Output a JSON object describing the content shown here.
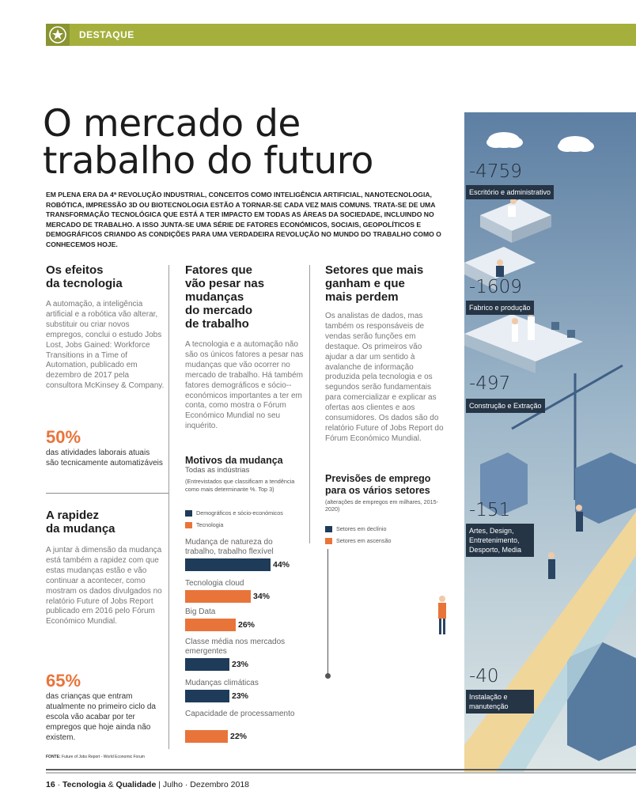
{
  "header": {
    "label": "DESTAQUE"
  },
  "title": {
    "line1": "O mercado de",
    "line2": "trabalho do futuro"
  },
  "lead": "Em plena era da 4ª revolução industrial, conceitos como inteligência artificial, nanotecnologia, robótica, impressão 3D ou biotecnologia estão a tornar-se cada vez mais comuns. Trata-se de uma transformação tecnológica que está a ter impacto em todas as áreas da sociedade, incluindo no mercado de trabalho. A isso junta-se uma série de fatores económicos, sociais, geopolíticos e demográficos criando as condições para uma verdadeira revolução no mundo do trabalho como o conhecemos hoje.",
  "col1": {
    "h1_line1": "Os efeitos",
    "h1_line2": "da tecnologia",
    "p1": "A automação, a inteligência artificial e a robótica vão alterar, substituir ou criar novos empregos, conclui o estudo Jobs Lost, Jobs Gained: Workforce Transitions in a Time of Automation, publicado em dezembro de 2017 pela consultora McKinsey & Company.",
    "stat1": "50%",
    "stat1_text": "das atividades laborais atuais são tecnicamente automatizáveis",
    "h2_line1": "A rapidez",
    "h2_line2": "da mudança",
    "p2": "A juntar à dimensão da mudança está também a rapidez com que estas mudanças estão e vão continuar a acontecer, como mostram os dados divulgados no relatório Future of Jobs Report publicado em 2016 pelo Fórum Económico Mundial.",
    "stat2": "65%",
    "stat2_text": "das crianças que entram atualmente no primeiro ciclo da escola vão acabar por ter empregos que hoje ainda não existem.",
    "source_label": "FONTE:",
    "source_text": " Future of Jobs Report - World Economic Forum"
  },
  "col2": {
    "h_line1": "Fatores que",
    "h_line2": "vão pesar nas",
    "h_line3": "mudanças",
    "h_line4": "do mercado",
    "h_line5": "de trabalho",
    "p": "A tecnologia e a automação não são os únicos fatores a pesar nas mudanças que vão ocorrer no mercado de trabalho. Há também fatores demográficos e sócio--económicos importantes a ter em conta, como mostra o Fórum Económico Mundial no seu inquérito.",
    "chart_title": "Motivos da mudança",
    "chart_subtitle": "Todas as indústrias",
    "chart_note": "(Entrevistados que classificam a tendência como mais determinante %. Top 3)"
  },
  "col3": {
    "h_line1": "Setores que mais",
    "h_line2": "ganham e que",
    "h_line3": "mais perdem",
    "p": "Os analistas de dados, mas também os responsáveis de vendas serão funções em destaque. Os primeiros vão ajudar a dar um sentido à avalanche de informação produzida pela tecnologia e os segundos serão fundamentais para comercializar e explicar as ofertas aos clientes e aos consumidores. Os dados são do relatório Future of Jobs Report do Fórum Económico Mundial.",
    "h2_line1": "Previsões de emprego",
    "h2_line2": "para os vários setores",
    "note": "(alterações de empregos em milhares, 2015-2020)",
    "legend_decline": "Setores em declínio",
    "legend_rise": "Setores em ascensão"
  },
  "chart_data": [
    {
      "type": "bar",
      "title": "Motivos da mudança",
      "subtitle": "Todas as indústrias",
      "legend": [
        "Demográficos e sócio-económicos",
        "Tecnologia"
      ],
      "categories": [
        "Mudança de natureza do trabalho, trabalho flexível",
        "Tecnologia cloud",
        "Big Data",
        "Classe média nos mercados emergentes",
        "Mudanças climáticas",
        "Capacidade de processamento"
      ],
      "values": [
        44,
        34,
        26,
        23,
        23,
        22
      ],
      "value_labels": [
        "44%",
        "34%",
        "26%",
        "23%",
        "23%",
        "22%"
      ],
      "groups": [
        "Demográficos e sócio-económicos",
        "Tecnologia",
        "Tecnologia",
        "Demográficos e sócio-económicos",
        "Demográficos e sócio-económicos",
        "Tecnologia"
      ],
      "colors": {
        "Demográficos e sócio-económicos": "#1f3b5a",
        "Tecnologia": "#e9743a"
      }
    },
    {
      "type": "bar",
      "title": "Previsões de emprego para os vários setores",
      "legend": [
        "Setores em declínio",
        "Setores em ascensão"
      ],
      "categories": [
        "Escritório e administrativo",
        "Fabrico e produção",
        "Construção e Extração",
        "Artes, Design, Entretenimento, Desporto, Media",
        "Instalação e manutenção"
      ],
      "values": [
        -4759,
        -1609,
        -497,
        -151,
        -40
      ],
      "value_labels": [
        "-4759",
        "-1609",
        "-497",
        "-151",
        "-40"
      ]
    }
  ],
  "colors": {
    "accent": "#a5b03c",
    "orange": "#e9743a",
    "navy": "#1f3b5a"
  },
  "footer": {
    "page": "16",
    "sep": " · ",
    "mag1": "Tecnologia",
    "amp": " & ",
    "mag2": "Qualidade",
    "issue": " | Julho · Dezembro 2018"
  }
}
